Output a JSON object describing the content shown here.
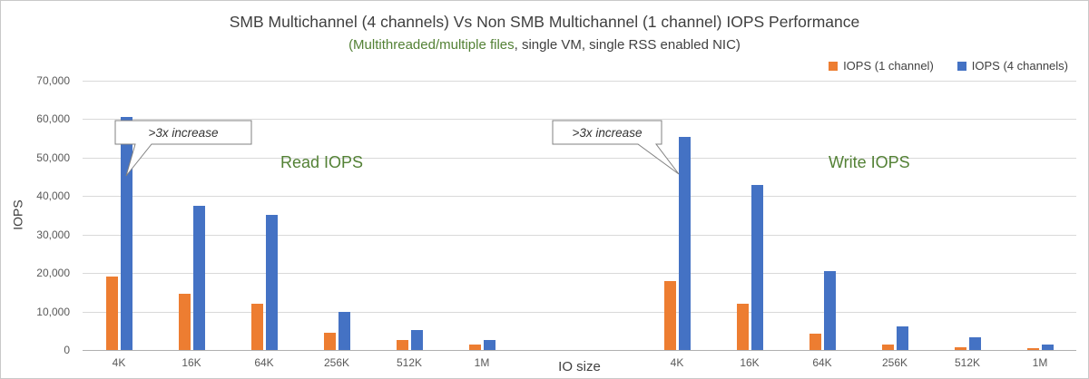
{
  "title": "SMB Multichannel (4 channels) Vs Non SMB Multichannel (1 channel) IOPS Performance",
  "subtitle": {
    "highlight": "(Multithreaded/multiple files",
    "rest": ", single VM, single RSS enabled NIC)",
    "highlight_color": "#538135"
  },
  "legend": {
    "items": [
      {
        "label": "IOPS (1 channel)",
        "color": "#ED7D31"
      },
      {
        "label": "IOPS (4 channels)",
        "color": "#4472C4"
      }
    ]
  },
  "axes": {
    "y_label": "IOPS",
    "x_label": "IO size"
  },
  "annotations": [
    {
      "text": ">3x increase",
      "target": "Read 4K, IOPS (4 channels)"
    },
    {
      "text": ">3x increase",
      "target": "Write 4K, IOPS (4 channels)"
    }
  ],
  "chart_data": {
    "type": "bar",
    "title": "SMB Multichannel (4 channels) Vs Non SMB Multichannel (1 channel) IOPS Performance",
    "subtitle": "(Multithreaded/multiple files, single VM, single RSS enabled NIC)",
    "xlabel": "IO size",
    "ylabel": "IOPS",
    "ylim": [
      0,
      70000
    ],
    "ytick_step": 10000,
    "yticks": [
      "0",
      "10,000",
      "20,000",
      "30,000",
      "40,000",
      "50,000",
      "60,000",
      "70,000"
    ],
    "grid": true,
    "legend_position": "top-right",
    "categories": [
      "4K",
      "16K",
      "64K",
      "256K",
      "512K",
      "1M"
    ],
    "groups": [
      {
        "name": "Read IOPS",
        "series": [
          {
            "name": "IOPS (1 channel)",
            "color": "#ED7D31",
            "values": [
              19000,
              14500,
              12000,
              4500,
              2500,
              1300
            ]
          },
          {
            "name": "IOPS (4 channels)",
            "color": "#4472C4",
            "values": [
              60500,
              37500,
              35200,
              10000,
              5300,
              2600
            ]
          }
        ]
      },
      {
        "name": "Write IOPS",
        "series": [
          {
            "name": "IOPS (1 channel)",
            "color": "#ED7D31",
            "values": [
              17800,
              12000,
              4200,
              1400,
              800,
              400
            ]
          },
          {
            "name": "IOPS (4 channels)",
            "color": "#4472C4",
            "values": [
              55500,
              43000,
              20500,
              6200,
              3300,
              1500
            ]
          }
        ]
      }
    ]
  }
}
